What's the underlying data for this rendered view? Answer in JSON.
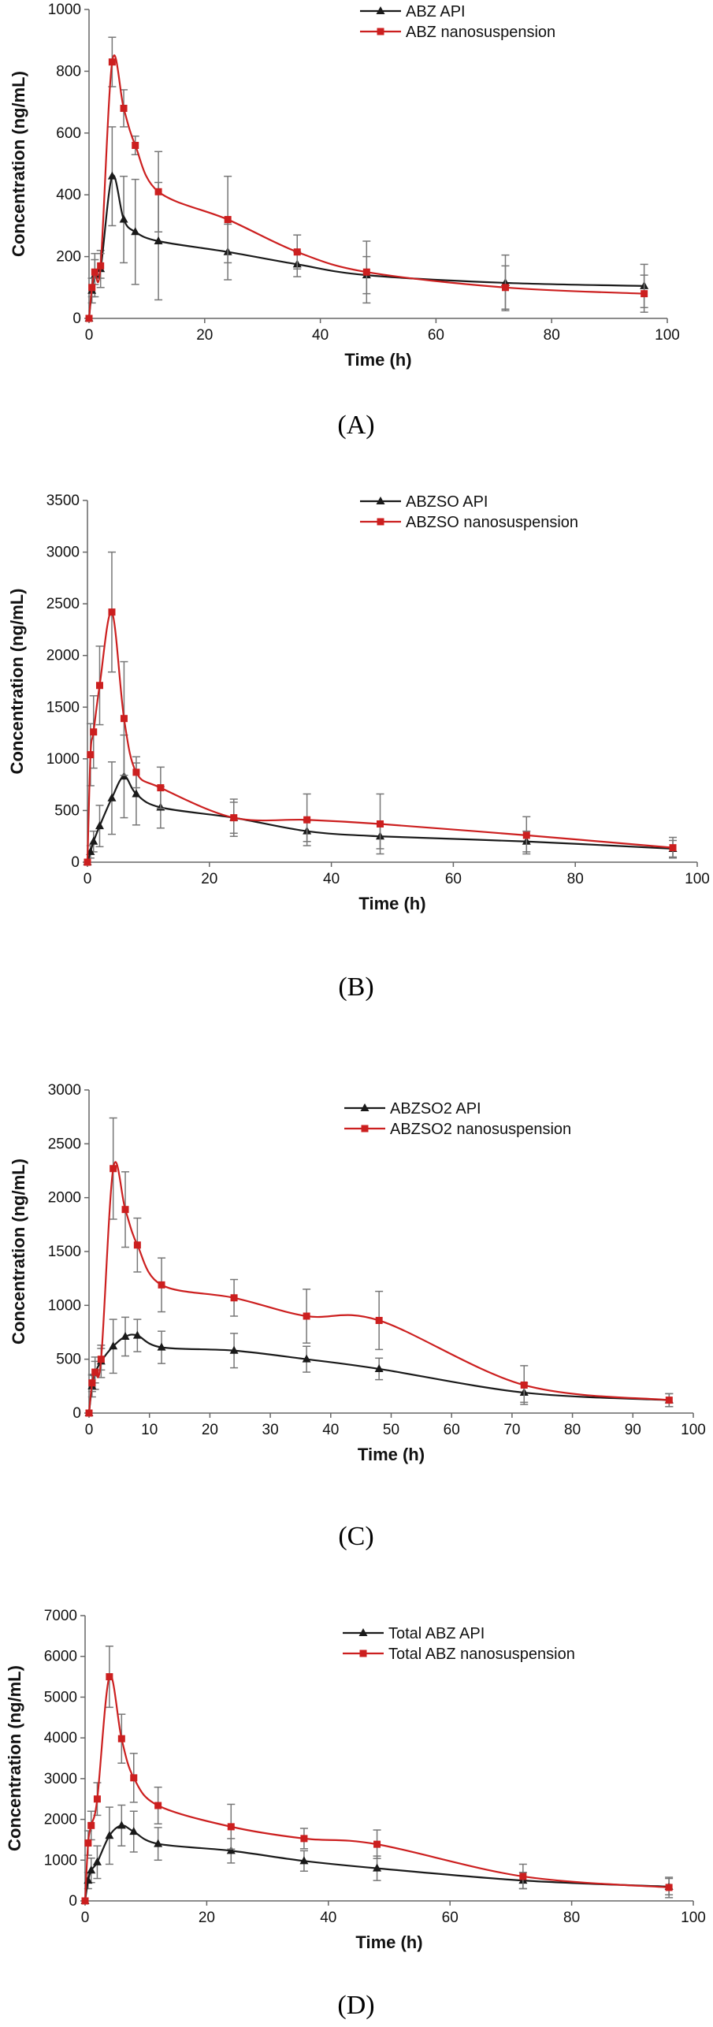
{
  "chart_data": [
    {
      "type": "line",
      "panel_label": "(A)",
      "xlabel": "Time (h)",
      "ylabel": "Concentration (ng/mL)",
      "xlim": [
        0,
        100
      ],
      "ylim": [
        0,
        1000
      ],
      "xticks": [
        0,
        20,
        40,
        60,
        80,
        100
      ],
      "yticks": [
        0,
        200,
        400,
        600,
        800,
        1000
      ],
      "legend_position": "top-center",
      "series": [
        {
          "name": "ABZ API",
          "color": "#1a1a1a",
          "marker": "triangle",
          "x": [
            0,
            0.5,
            1,
            2,
            4,
            6,
            8,
            12,
            24,
            36,
            48,
            72,
            96
          ],
          "y": [
            0,
            90,
            140,
            160,
            460,
            320,
            280,
            250,
            215,
            175,
            140,
            115,
            105
          ],
          "err": [
            0,
            40,
            70,
            60,
            160,
            140,
            170,
            190,
            90,
            40,
            60,
            90,
            70
          ]
        },
        {
          "name": "ABZ nanosuspension",
          "color": "#cc1f1f",
          "marker": "square",
          "x": [
            0,
            0.5,
            1,
            2,
            4,
            6,
            8,
            12,
            24,
            36,
            48,
            72,
            96
          ],
          "y": [
            0,
            100,
            150,
            170,
            830,
            680,
            560,
            410,
            320,
            215,
            150,
            100,
            80
          ],
          "err": [
            0,
            30,
            40,
            40,
            80,
            60,
            30,
            130,
            140,
            55,
            100,
            70,
            60
          ]
        }
      ]
    },
    {
      "type": "line",
      "panel_label": "(B)",
      "xlabel": "Time (h)",
      "ylabel": "Concentration (ng/mL)",
      "xlim": [
        0,
        100
      ],
      "ylim": [
        0,
        3500
      ],
      "xticks": [
        0,
        20,
        40,
        60,
        80,
        100
      ],
      "yticks": [
        0,
        500,
        1000,
        1500,
        2000,
        2500,
        3000,
        3500
      ],
      "legend_position": "top-center",
      "series": [
        {
          "name": "ABZSO API",
          "color": "#1a1a1a",
          "marker": "triangle",
          "x": [
            0,
            0.5,
            1,
            2,
            4,
            6,
            8,
            12,
            24,
            36,
            48,
            72,
            96
          ],
          "y": [
            0,
            100,
            200,
            350,
            620,
            830,
            660,
            530,
            430,
            300,
            250,
            200,
            130
          ],
          "err": [
            0,
            60,
            100,
            200,
            350,
            400,
            300,
            200,
            150,
            100,
            120,
            100,
            80
          ]
        },
        {
          "name": "ABZSO nanosuspension",
          "color": "#cc1f1f",
          "marker": "square",
          "x": [
            0,
            0.5,
            1,
            2,
            4,
            6,
            8,
            12,
            24,
            36,
            48,
            72,
            96
          ],
          "y": [
            0,
            1040,
            1260,
            1710,
            2420,
            1390,
            870,
            720,
            430,
            410,
            370,
            260,
            140
          ],
          "err": [
            0,
            300,
            350,
            380,
            580,
            550,
            150,
            200,
            180,
            250,
            290,
            180,
            100
          ]
        }
      ]
    },
    {
      "type": "line",
      "panel_label": "(C)",
      "xlabel": "Time (h)",
      "ylabel": "Concentration (ng/mL)",
      "xlim": [
        0,
        100
      ],
      "ylim": [
        0,
        3000
      ],
      "xticks": [
        0,
        10,
        20,
        30,
        40,
        50,
        60,
        70,
        80,
        90,
        100
      ],
      "yticks": [
        0,
        500,
        1000,
        1500,
        2000,
        2500,
        3000
      ],
      "legend_position": "top-center",
      "series": [
        {
          "name": "ABZSO2 API",
          "color": "#1a1a1a",
          "marker": "triangle",
          "x": [
            0,
            0.5,
            1,
            2,
            4,
            6,
            8,
            12,
            24,
            36,
            48,
            72,
            96
          ],
          "y": [
            0,
            250,
            370,
            480,
            620,
            710,
            720,
            610,
            580,
            500,
            410,
            190,
            120
          ],
          "err": [
            0,
            100,
            150,
            150,
            250,
            180,
            150,
            150,
            160,
            120,
            100,
            90,
            60
          ]
        },
        {
          "name": "ABZSO2 nanosuspension",
          "color": "#cc1f1f",
          "marker": "square",
          "x": [
            0,
            0.5,
            1,
            2,
            4,
            6,
            8,
            12,
            24,
            36,
            48,
            72,
            96
          ],
          "y": [
            0,
            280,
            380,
            500,
            2270,
            1890,
            1560,
            1190,
            1070,
            900,
            860,
            260,
            120
          ],
          "err": [
            0,
            80,
            100,
            100,
            470,
            350,
            250,
            250,
            170,
            250,
            270,
            180,
            60
          ]
        }
      ]
    },
    {
      "type": "line",
      "panel_label": "(D)",
      "xlabel": "Time (h)",
      "ylabel": "Concentration (ng/mL)",
      "xlim": [
        0,
        100
      ],
      "ylim": [
        0,
        7000
      ],
      "xticks": [
        0,
        20,
        40,
        60,
        80,
        100
      ],
      "yticks": [
        0,
        1000,
        2000,
        3000,
        4000,
        5000,
        6000,
        7000
      ],
      "legend_position": "top-center",
      "series": [
        {
          "name": "Total ABZ API",
          "color": "#1a1a1a",
          "marker": "triangle",
          "x": [
            0,
            0.5,
            1,
            2,
            4,
            6,
            8,
            12,
            24,
            36,
            48,
            72,
            96
          ],
          "y": [
            0,
            500,
            750,
            950,
            1600,
            1850,
            1700,
            1400,
            1230,
            980,
            800,
            500,
            350
          ],
          "err": [
            0,
            200,
            300,
            400,
            700,
            500,
            500,
            400,
            300,
            250,
            300,
            200,
            200
          ]
        },
        {
          "name": "Total ABZ nanosuspension",
          "color": "#cc1f1f",
          "marker": "square",
          "x": [
            0,
            0.5,
            1,
            2,
            4,
            6,
            8,
            12,
            24,
            36,
            48,
            72,
            96
          ],
          "y": [
            0,
            1420,
            1850,
            2500,
            5500,
            3980,
            3020,
            2340,
            1820,
            1530,
            1390,
            600,
            330
          ],
          "err": [
            0,
            300,
            350,
            400,
            750,
            600,
            600,
            450,
            550,
            250,
            350,
            300,
            250
          ]
        }
      ]
    }
  ]
}
